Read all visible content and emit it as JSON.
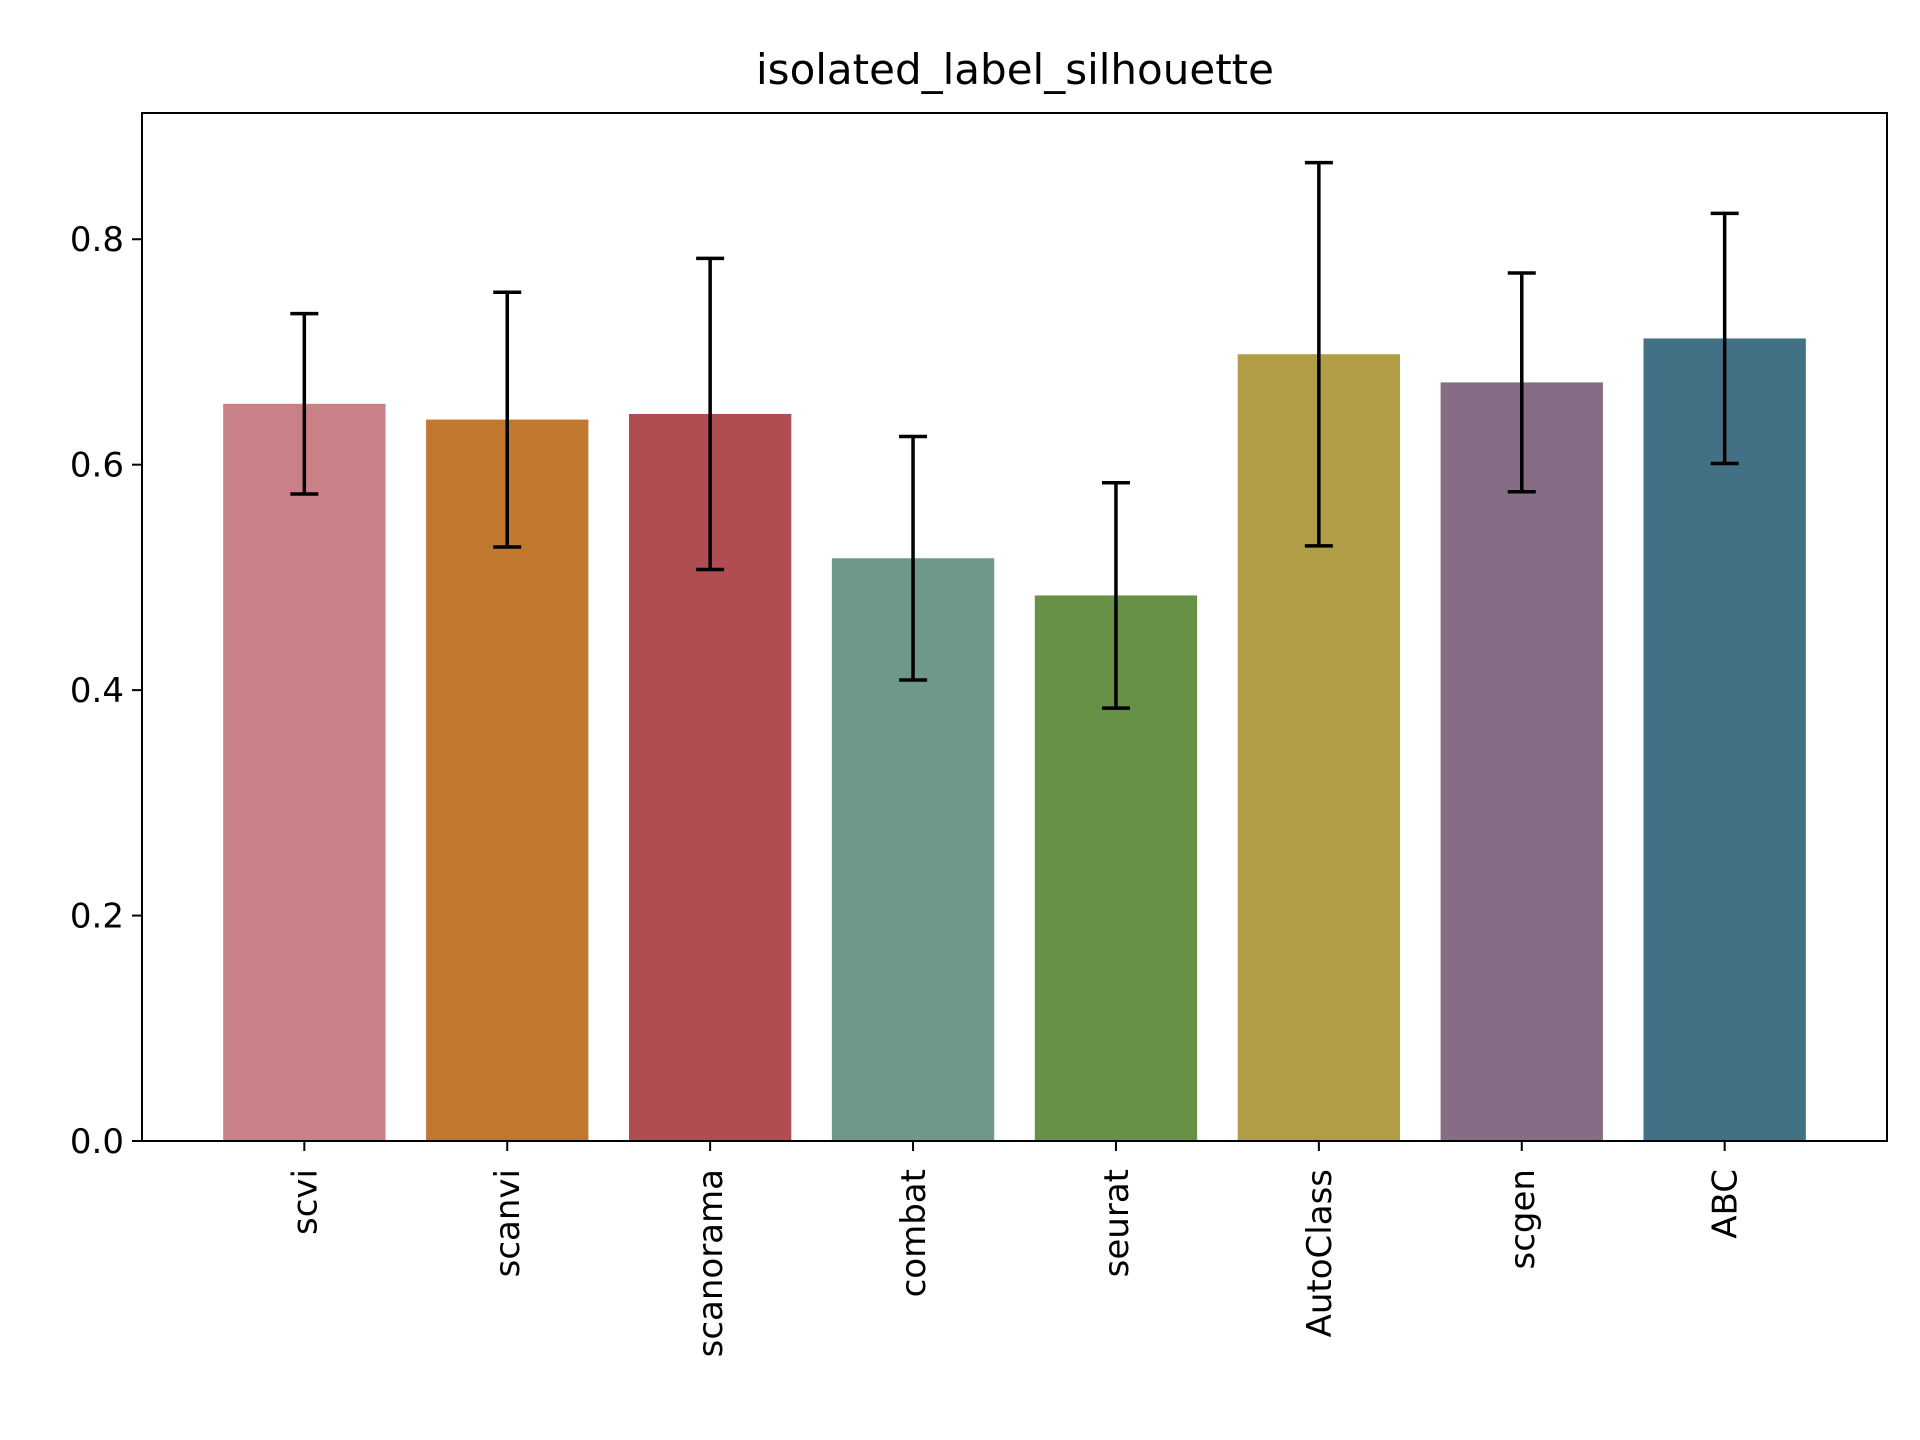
{
  "chart_data": {
    "type": "bar",
    "title": "isolated_label_silhouette",
    "xlabel": "",
    "ylabel": "",
    "categories": [
      "scvi",
      "scanvi",
      "scanorama",
      "combat",
      "seurat",
      "AutoClass",
      "scgen",
      "ABC"
    ],
    "values": [
      0.654,
      0.64,
      0.645,
      0.517,
      0.484,
      0.698,
      0.673,
      0.712
    ],
    "error": [
      0.08,
      0.113,
      0.138,
      0.108,
      0.1,
      0.17,
      0.097,
      0.111
    ],
    "colors": [
      "#c98086",
      "#c0772e",
      "#af4d52",
      "#6e988b",
      "#679146",
      "#b09d46",
      "#866d85",
      "#427185"
    ],
    "ylim": [
      0,
      0.912
    ],
    "yticks": [
      0.0,
      0.2,
      0.4,
      0.6,
      0.8
    ],
    "ytick_labels": [
      "0.0",
      "0.2",
      "0.4",
      "0.6",
      "0.8"
    ],
    "grid": false,
    "legend": false
  }
}
